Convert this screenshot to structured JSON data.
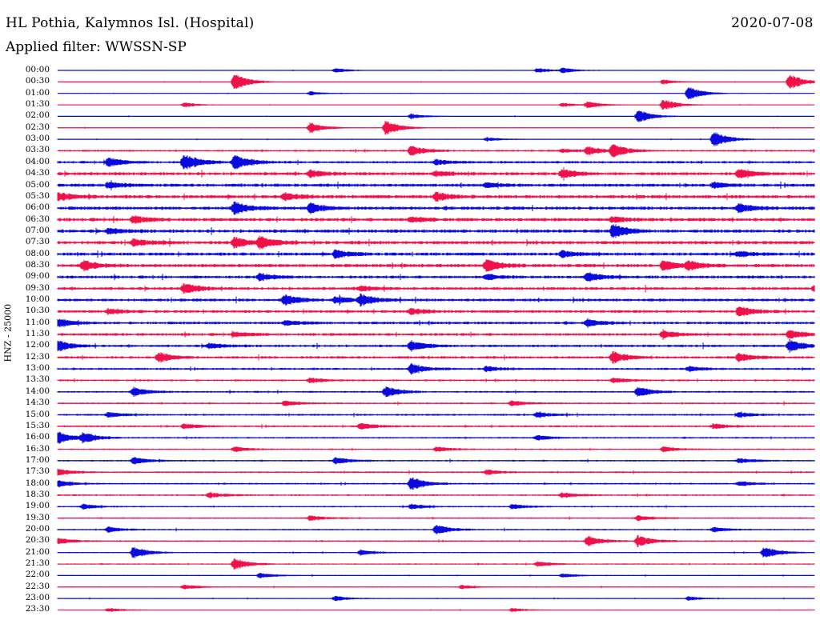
{
  "header": {
    "station": "HL Pothia, Kalymnos Isl. (Hospital)",
    "date": "2020-07-08",
    "filter": "Applied filter: WWSSN-SP"
  },
  "axis": {
    "channel_label": "HNZ - 25000"
  },
  "colors": {
    "even_hour_trace": "#0a0adf",
    "half_hour_trace": "#f0104a"
  },
  "chart_data": {
    "type": "line",
    "title": "HL Pothia, Kalymnos Isl. (Hospital)",
    "ylabel": "HNZ - 25000",
    "legend": "none",
    "grid": false,
    "row_labels": [
      "00:00",
      "00:30",
      "01:00",
      "01:30",
      "02:00",
      "02:30",
      "03:00",
      "03:30",
      "04:00",
      "04:30",
      "05:00",
      "05:30",
      "06:00",
      "06:30",
      "07:00",
      "07:30",
      "08:00",
      "08:30",
      "09:00",
      "09:30",
      "10:00",
      "10:30",
      "11:00",
      "11:30",
      "12:00",
      "12:30",
      "13:00",
      "13:30",
      "14:00",
      "14:30",
      "15:00",
      "15:30",
      "16:00",
      "16:30",
      "17:00",
      "17:30",
      "18:00",
      "18:30",
      "19:00",
      "19:30",
      "20:00",
      "20:30",
      "21:00",
      "21:30",
      "22:00",
      "22:30",
      "23:00",
      "23:30"
    ],
    "row_noise_level": [
      0.3,
      0.3,
      0.3,
      0.3,
      0.35,
      0.4,
      0.45,
      0.9,
      1.2,
      1.5,
      1.5,
      1.6,
      1.6,
      1.6,
      1.6,
      1.6,
      1.5,
      1.6,
      1.4,
      1.4,
      1.4,
      1.3,
      1.3,
      1.3,
      1.2,
      1.2,
      1.0,
      0.9,
      0.9,
      0.8,
      0.9,
      0.9,
      0.8,
      0.7,
      0.8,
      0.8,
      0.8,
      0.8,
      0.7,
      0.7,
      0.7,
      0.7,
      0.6,
      0.6,
      0.5,
      0.45,
      0.45,
      0.4
    ],
    "bursts_minutes": [
      [
        [
          11,
          1.5
        ],
        [
          19,
          1.5
        ],
        [
          20,
          1.5
        ]
      ],
      [
        [
          7,
          5
        ],
        [
          29,
          5
        ],
        [
          24,
          1.5
        ]
      ],
      [
        [
          25,
          4
        ],
        [
          10,
          1.2
        ]
      ],
      [
        [
          21,
          2
        ],
        [
          5,
          1.5
        ],
        [
          24,
          3.5
        ],
        [
          20,
          1.2
        ]
      ],
      [
        [
          23,
          4
        ],
        [
          14,
          1.5
        ]
      ],
      [
        [
          10,
          3
        ],
        [
          13,
          4.5
        ]
      ],
      [
        [
          26,
          5
        ],
        [
          17,
          1.2
        ]
      ],
      [
        [
          14,
          3
        ],
        [
          21,
          2.5
        ],
        [
          22,
          4
        ],
        [
          20,
          1.2
        ]
      ],
      [
        [
          5,
          5
        ],
        [
          7,
          5
        ],
        [
          2,
          2.5
        ],
        [
          15,
          1.5
        ]
      ],
      [
        [
          10,
          2
        ],
        [
          20,
          2.5
        ],
        [
          27,
          3
        ],
        [
          15,
          1.5
        ]
      ],
      [
        [
          2,
          1.5
        ],
        [
          17,
          1.5
        ],
        [
          26,
          1.5
        ]
      ],
      [
        [
          0,
          2.5
        ],
        [
          15,
          2.5
        ],
        [
          9,
          2
        ]
      ],
      [
        [
          7,
          3.5
        ],
        [
          10,
          3
        ],
        [
          27,
          2.5
        ]
      ],
      [
        [
          3,
          2
        ],
        [
          14,
          1.5
        ],
        [
          22,
          1.5
        ]
      ],
      [
        [
          22,
          4
        ],
        [
          2,
          1.5
        ]
      ],
      [
        [
          7,
          3
        ],
        [
          8,
          3.5
        ],
        [
          3,
          2
        ]
      ],
      [
        [
          11,
          2.5
        ],
        [
          20,
          1.8
        ],
        [
          27,
          1.5
        ]
      ],
      [
        [
          1,
          3
        ],
        [
          17,
          3.5
        ],
        [
          24,
          3
        ],
        [
          25,
          2.5
        ]
      ],
      [
        [
          8,
          2
        ],
        [
          17,
          1.5
        ],
        [
          21,
          2.5
        ]
      ],
      [
        [
          5,
          3
        ],
        [
          30,
          2
        ],
        [
          12,
          1.5
        ]
      ],
      [
        [
          9,
          3
        ],
        [
          12,
          3
        ],
        [
          11,
          2
        ]
      ],
      [
        [
          27,
          3
        ],
        [
          14,
          1.8
        ],
        [
          2,
          1.5
        ]
      ],
      [
        [
          0,
          2.5
        ],
        [
          21,
          2
        ],
        [
          9,
          1.5
        ]
      ],
      [
        [
          7,
          1.5
        ],
        [
          24,
          2
        ],
        [
          29,
          2.5
        ]
      ],
      [
        [
          0,
          3
        ],
        [
          14,
          3
        ],
        [
          29,
          3.5
        ],
        [
          6,
          1.5
        ]
      ],
      [
        [
          4,
          3
        ],
        [
          22,
          3.5
        ],
        [
          27,
          2.5
        ]
      ],
      [
        [
          14,
          3
        ],
        [
          17,
          1.5
        ],
        [
          25,
          1.5
        ]
      ],
      [
        [
          10,
          1.5
        ],
        [
          22,
          1.5
        ]
      ],
      [
        [
          3,
          2.5
        ],
        [
          13,
          3
        ],
        [
          23,
          3
        ]
      ],
      [
        [
          9,
          1.5
        ],
        [
          18,
          1.5
        ]
      ],
      [
        [
          2,
          1.5
        ],
        [
          19,
          1.5
        ],
        [
          27,
          1.5
        ]
      ],
      [
        [
          5,
          1.5
        ],
        [
          12,
          2
        ],
        [
          26,
          1.5
        ]
      ],
      [
        [
          0,
          3.5
        ],
        [
          1,
          3
        ],
        [
          19,
          1.5
        ]
      ],
      [
        [
          7,
          1.5
        ],
        [
          15,
          1.5
        ],
        [
          24,
          1.5
        ]
      ],
      [
        [
          3,
          2
        ],
        [
          11,
          2
        ],
        [
          27,
          1.5
        ]
      ],
      [
        [
          0,
          2
        ],
        [
          17,
          1.5
        ]
      ],
      [
        [
          14,
          4
        ],
        [
          0,
          2
        ],
        [
          27,
          1.5
        ]
      ],
      [
        [
          6,
          1.5
        ],
        [
          20,
          1.5
        ]
      ],
      [
        [
          1,
          1.5
        ],
        [
          14,
          1.5
        ],
        [
          18,
          1.5
        ]
      ],
      [
        [
          10,
          1.5
        ],
        [
          23,
          1.5
        ]
      ],
      [
        [
          2,
          1.5
        ],
        [
          15,
          3
        ],
        [
          26,
          1.5
        ]
      ],
      [
        [
          0,
          2
        ],
        [
          21,
          3
        ],
        [
          23,
          3.5
        ]
      ],
      [
        [
          3,
          3.5
        ],
        [
          28,
          3.5
        ],
        [
          12,
          1.5
        ]
      ],
      [
        [
          7,
          3.5
        ],
        [
          19,
          1.5
        ]
      ],
      [
        [
          8,
          1.5
        ],
        [
          20,
          1.2
        ]
      ],
      [
        [
          5,
          1.5
        ],
        [
          16,
          1.2
        ]
      ],
      [
        [
          11,
          1.5
        ],
        [
          25,
          1.2
        ]
      ],
      [
        [
          2,
          1.2
        ],
        [
          18,
          1.2
        ]
      ]
    ],
    "x_range_minutes": [
      0,
      30
    ]
  }
}
